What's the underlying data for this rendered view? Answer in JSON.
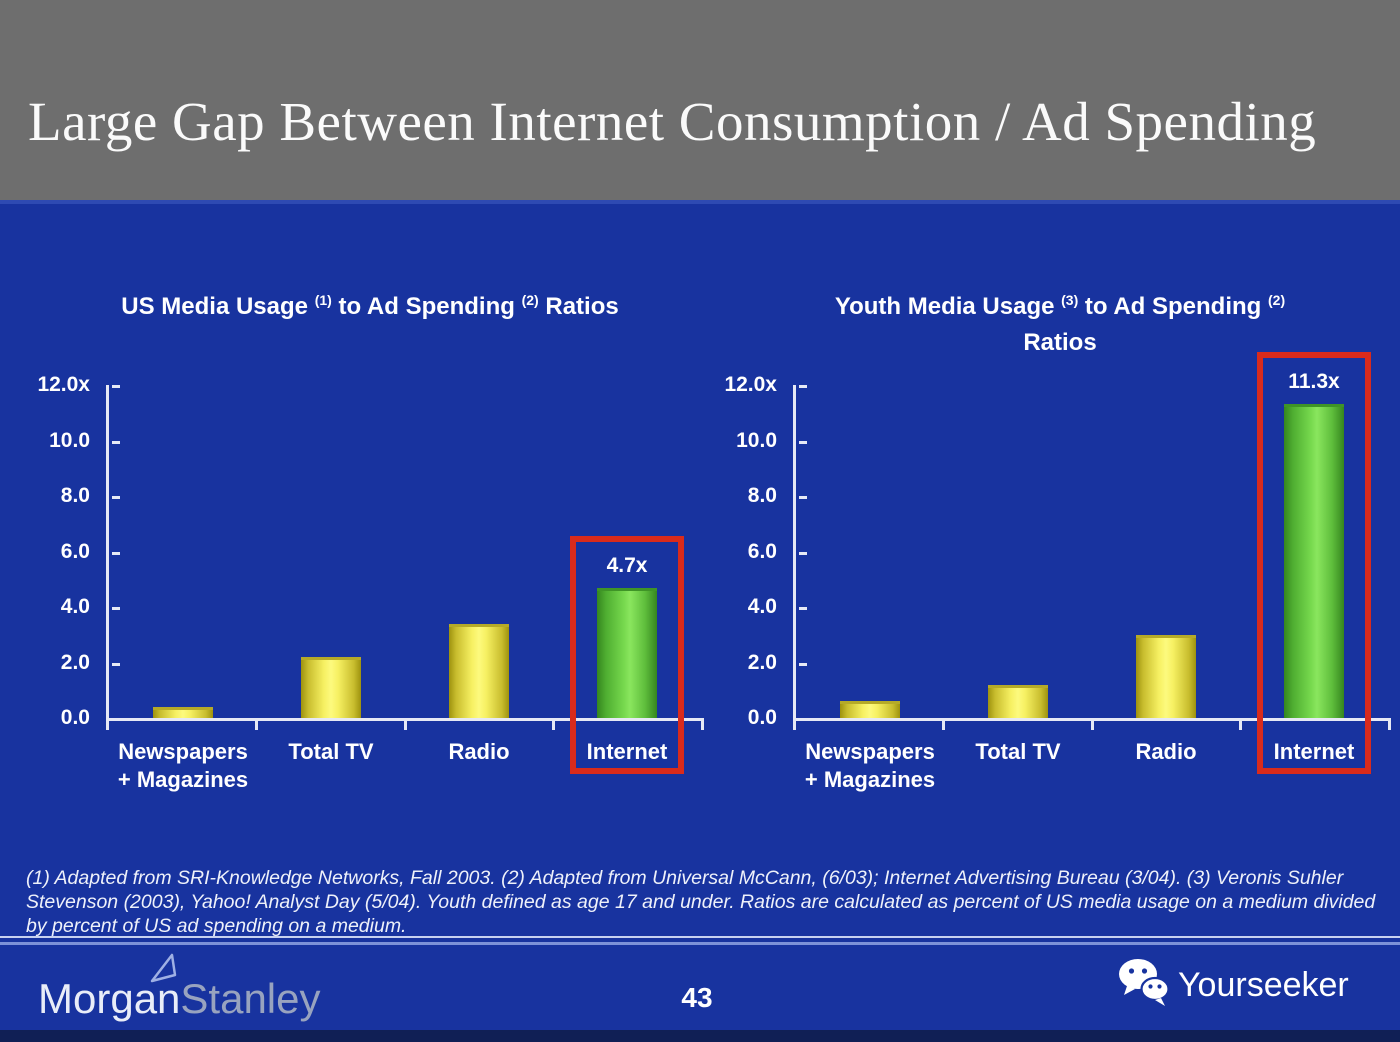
{
  "header": {
    "title": "Large Gap Between Internet Consumption / Ad Spending"
  },
  "footnote": {
    "text": "(1) Adapted from SRI-Knowledge Networks, Fall 2003.  (2) Adapted from Universal McCann, (6/03); Internet Advertising Bureau (3/04). (3) Veronis Suhler Stevenson (2003), Yahoo! Analyst Day (5/04).  Youth defined as age 17 and under.  Ratios are calculated as percent of US media usage on a medium divided by percent of US ad spending on a medium."
  },
  "footer": {
    "logo_part1": "Morgan",
    "logo_part2": "Stanley",
    "page_number": "43",
    "brand_name": "Yourseeker",
    "brand_icon": "wechat-icon"
  },
  "colors": {
    "header_bg": "#6e6e6e",
    "slide_bg": "#18339f",
    "bar_yellow": "#f0e95c",
    "bar_green": "#6fd447",
    "highlight_red": "#d92b1c",
    "text_white": "#ffffff",
    "logo_secondary": "#98a3bf"
  },
  "chart_data": [
    {
      "type": "bar",
      "title": "US Media Usage (1) to Ad Spending (2) Ratios",
      "title_lines": [
        [
          {
            "text": "US Media Usage "
          },
          {
            "sup": "(1)"
          },
          {
            "text": " to Ad Spending "
          },
          {
            "sup": "(2)"
          },
          {
            "text": " Ratios"
          }
        ]
      ],
      "categories": [
        "Newspapers\n+ Magazines",
        "Total TV",
        "Radio",
        "Internet"
      ],
      "values": [
        0.4,
        2.2,
        3.4,
        4.7
      ],
      "bar_colors": [
        "yellow",
        "yellow",
        "yellow",
        "green"
      ],
      "highlight": {
        "index": 3,
        "label": "4.7x"
      },
      "xlabel": "",
      "ylabel": "",
      "ylim": [
        0,
        12
      ],
      "ytick_step": 2,
      "yticklabels": [
        "0.0",
        "2.0",
        "4.0",
        "6.0",
        "8.0",
        "10.0",
        "12.0x"
      ],
      "grid": false,
      "legend": null
    },
    {
      "type": "bar",
      "title": "Youth Media Usage (3) to Ad Spending (2) Ratios",
      "title_lines": [
        [
          {
            "text": "Youth Media Usage "
          },
          {
            "sup": "(3)"
          },
          {
            "text": " to Ad Spending "
          },
          {
            "sup": "(2)"
          }
        ],
        [
          {
            "text": "Ratios"
          }
        ]
      ],
      "categories": [
        "Newspapers\n+ Magazines",
        "Total TV",
        "Radio",
        "Internet"
      ],
      "values": [
        0.6,
        1.2,
        3.0,
        11.3
      ],
      "bar_colors": [
        "yellow",
        "yellow",
        "yellow",
        "green"
      ],
      "highlight": {
        "index": 3,
        "label": "11.3x"
      },
      "xlabel": "",
      "ylabel": "",
      "ylim": [
        0,
        12
      ],
      "ytick_step": 2,
      "yticklabels": [
        "0.0",
        "2.0",
        "4.0",
        "6.0",
        "8.0",
        "10.0",
        "12.0x"
      ],
      "grid": false,
      "legend": null
    }
  ]
}
